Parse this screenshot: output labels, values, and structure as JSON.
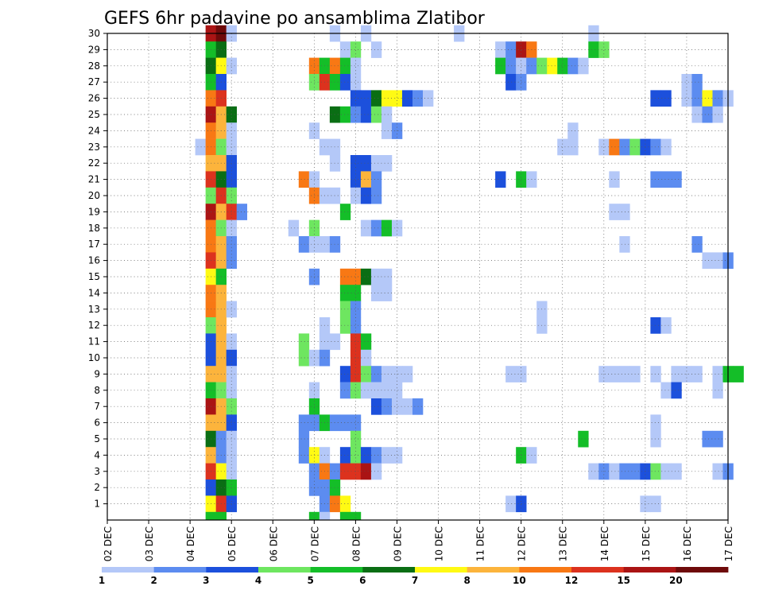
{
  "chart_data": {
    "type": "heatmap",
    "title": "GEFS 6hr padavine po ansamblima Zlatibor",
    "xlabel": "",
    "ylabel": "",
    "x_tick_labels": [
      "02 DEC",
      "03 DEC",
      "04 DEC",
      "05 DEC",
      "06 DEC",
      "07 DEC",
      "08 DEC",
      "09 DEC",
      "10 DEC",
      "11 DEC",
      "12 DEC",
      "13 DEC",
      "14 DEC",
      "15 DEC",
      "16 DEC",
      "17 DEC"
    ],
    "y_tick_labels": [
      "1",
      "2",
      "3",
      "4",
      "5",
      "6",
      "7",
      "8",
      "9",
      "10",
      "11",
      "12",
      "13",
      "14",
      "15",
      "16",
      "17",
      "18",
      "19",
      "20",
      "21",
      "22",
      "23",
      "24",
      "25",
      "26",
      "27",
      "28",
      "29",
      "30"
    ],
    "grid": true,
    "colorbar": {
      "labels": [
        "1",
        "2",
        "3",
        "4",
        "5",
        "6",
        "7",
        "8",
        "10",
        "12",
        "15",
        "20"
      ],
      "colors": [
        "#b4c8f8",
        "#5c8cf0",
        "#1c50dc",
        "#6ee660",
        "#14be28",
        "#0a6e14",
        "#fffa14",
        "#fcb43c",
        "#f87814",
        "#dc321e",
        "#aa1414",
        "#6e0a0a"
      ]
    },
    "cells": [
      [
        30,
        10,
        11
      ],
      [
        30,
        11,
        12
      ],
      [
        30,
        12,
        1
      ],
      [
        30,
        22,
        1
      ],
      [
        30,
        25,
        1
      ],
      [
        30,
        34,
        1
      ],
      [
        30,
        47,
        1
      ],
      [
        29,
        10,
        5
      ],
      [
        29,
        11,
        6
      ],
      [
        29,
        23,
        1
      ],
      [
        29,
        24,
        4
      ],
      [
        29,
        26,
        1
      ],
      [
        29,
        38,
        1
      ],
      [
        29,
        39,
        2
      ],
      [
        29,
        40,
        11
      ],
      [
        29,
        41,
        9
      ],
      [
        29,
        47,
        5
      ],
      [
        29,
        48,
        4
      ],
      [
        28,
        10,
        6
      ],
      [
        28,
        11,
        7
      ],
      [
        28,
        12,
        1
      ],
      [
        28,
        20,
        9
      ],
      [
        28,
        21,
        5
      ],
      [
        28,
        22,
        9
      ],
      [
        28,
        23,
        5
      ],
      [
        28,
        24,
        1
      ],
      [
        28,
        38,
        5
      ],
      [
        28,
        39,
        2
      ],
      [
        28,
        40,
        1
      ],
      [
        28,
        41,
        2
      ],
      [
        28,
        42,
        4
      ],
      [
        28,
        43,
        7
      ],
      [
        28,
        44,
        5
      ],
      [
        28,
        45,
        2
      ],
      [
        28,
        46,
        1
      ],
      [
        27,
        10,
        5
      ],
      [
        27,
        11,
        3
      ],
      [
        27,
        20,
        4
      ],
      [
        27,
        21,
        10
      ],
      [
        27,
        22,
        5
      ],
      [
        27,
        23,
        3
      ],
      [
        27,
        24,
        1
      ],
      [
        27,
        39,
        3
      ],
      [
        27,
        40,
        2
      ],
      [
        27,
        56,
        1
      ],
      [
        27,
        57,
        2
      ],
      [
        26,
        10,
        9
      ],
      [
        26,
        11,
        10
      ],
      [
        26,
        24,
        3
      ],
      [
        26,
        25,
        3
      ],
      [
        26,
        26,
        6
      ],
      [
        26,
        27,
        7
      ],
      [
        26,
        28,
        7
      ],
      [
        26,
        29,
        3
      ],
      [
        26,
        30,
        2
      ],
      [
        26,
        31,
        1
      ],
      [
        26,
        53,
        3
      ],
      [
        26,
        54,
        3
      ],
      [
        26,
        56,
        1
      ],
      [
        26,
        57,
        2
      ],
      [
        26,
        58,
        7
      ],
      [
        26,
        59,
        2
      ],
      [
        26,
        60,
        1
      ],
      [
        25,
        10,
        11
      ],
      [
        25,
        11,
        8
      ],
      [
        25,
        12,
        6
      ],
      [
        25,
        22,
        6
      ],
      [
        25,
        23,
        5
      ],
      [
        25,
        24,
        2
      ],
      [
        25,
        25,
        3
      ],
      [
        25,
        26,
        4
      ],
      [
        25,
        27,
        1
      ],
      [
        25,
        57,
        1
      ],
      [
        25,
        58,
        2
      ],
      [
        25,
        59,
        1
      ],
      [
        24,
        10,
        9
      ],
      [
        24,
        11,
        8
      ],
      [
        24,
        12,
        1
      ],
      [
        24,
        20,
        1
      ],
      [
        24,
        27,
        1
      ],
      [
        24,
        28,
        2
      ],
      [
        24,
        45,
        1
      ],
      [
        23,
        9,
        1
      ],
      [
        23,
        10,
        9
      ],
      [
        23,
        11,
        4
      ],
      [
        23,
        12,
        1
      ],
      [
        23,
        21,
        1
      ],
      [
        23,
        22,
        1
      ],
      [
        23,
        44,
        1
      ],
      [
        23,
        45,
        1
      ],
      [
        23,
        48,
        1
      ],
      [
        23,
        49,
        9
      ],
      [
        23,
        50,
        2
      ],
      [
        23,
        51,
        4
      ],
      [
        23,
        52,
        3
      ],
      [
        23,
        53,
        2
      ],
      [
        23,
        54,
        1
      ],
      [
        22,
        10,
        8
      ],
      [
        22,
        11,
        8
      ],
      [
        22,
        12,
        3
      ],
      [
        22,
        22,
        1
      ],
      [
        22,
        24,
        3
      ],
      [
        22,
        25,
        3
      ],
      [
        22,
        26,
        1
      ],
      [
        22,
        27,
        1
      ],
      [
        21,
        10,
        10
      ],
      [
        21,
        11,
        6
      ],
      [
        21,
        12,
        3
      ],
      [
        21,
        19,
        9
      ],
      [
        21,
        20,
        1
      ],
      [
        21,
        24,
        3
      ],
      [
        21,
        25,
        8
      ],
      [
        21,
        26,
        2
      ],
      [
        21,
        38,
        3
      ],
      [
        21,
        40,
        5
      ],
      [
        21,
        41,
        1
      ],
      [
        21,
        49,
        1
      ],
      [
        21,
        53,
        2
      ],
      [
        21,
        54,
        2
      ],
      [
        21,
        55,
        2
      ],
      [
        20,
        10,
        4
      ],
      [
        20,
        11,
        10
      ],
      [
        20,
        12,
        4
      ],
      [
        20,
        20,
        9
      ],
      [
        20,
        21,
        1
      ],
      [
        20,
        22,
        1
      ],
      [
        20,
        24,
        1
      ],
      [
        20,
        25,
        3
      ],
      [
        20,
        26,
        2
      ],
      [
        19,
        10,
        11
      ],
      [
        19,
        11,
        8
      ],
      [
        19,
        12,
        10
      ],
      [
        19,
        13,
        2
      ],
      [
        19,
        23,
        5
      ],
      [
        19,
        49,
        1
      ],
      [
        19,
        50,
        1
      ],
      [
        18,
        10,
        9
      ],
      [
        18,
        11,
        4
      ],
      [
        18,
        12,
        1
      ],
      [
        18,
        18,
        1
      ],
      [
        18,
        20,
        4
      ],
      [
        18,
        25,
        1
      ],
      [
        18,
        26,
        2
      ],
      [
        18,
        27,
        5
      ],
      [
        18,
        28,
        1
      ],
      [
        17,
        10,
        9
      ],
      [
        17,
        11,
        8
      ],
      [
        17,
        12,
        2
      ],
      [
        17,
        19,
        2
      ],
      [
        17,
        20,
        1
      ],
      [
        17,
        21,
        1
      ],
      [
        17,
        22,
        2
      ],
      [
        17,
        50,
        1
      ],
      [
        17,
        57,
        2
      ],
      [
        16,
        10,
        10
      ],
      [
        16,
        11,
        8
      ],
      [
        16,
        12,
        2
      ],
      [
        16,
        58,
        1
      ],
      [
        16,
        59,
        1
      ],
      [
        16,
        60,
        2
      ],
      [
        15,
        10,
        7
      ],
      [
        15,
        11,
        5
      ],
      [
        15,
        20,
        2
      ],
      [
        15,
        23,
        9
      ],
      [
        15,
        24,
        9
      ],
      [
        15,
        25,
        6
      ],
      [
        15,
        26,
        1
      ],
      [
        15,
        27,
        1
      ],
      [
        14,
        10,
        9
      ],
      [
        14,
        11,
        8
      ],
      [
        14,
        23,
        5
      ],
      [
        14,
        24,
        5
      ],
      [
        14,
        26,
        1
      ],
      [
        14,
        27,
        1
      ],
      [
        13,
        10,
        9
      ],
      [
        13,
        11,
        8
      ],
      [
        13,
        12,
        1
      ],
      [
        13,
        23,
        4
      ],
      [
        13,
        24,
        2
      ],
      [
        13,
        42,
        1
      ],
      [
        12,
        10,
        4
      ],
      [
        12,
        11,
        8
      ],
      [
        12,
        21,
        1
      ],
      [
        12,
        23,
        4
      ],
      [
        12,
        24,
        2
      ],
      [
        12,
        42,
        1
      ],
      [
        12,
        53,
        3
      ],
      [
        12,
        54,
        1
      ],
      [
        11,
        10,
        3
      ],
      [
        11,
        11,
        8
      ],
      [
        11,
        12,
        1
      ],
      [
        11,
        19,
        4
      ],
      [
        11,
        21,
        1
      ],
      [
        11,
        22,
        1
      ],
      [
        11,
        24,
        10
      ],
      [
        11,
        25,
        5
      ],
      [
        10,
        10,
        3
      ],
      [
        10,
        11,
        8
      ],
      [
        10,
        12,
        3
      ],
      [
        10,
        19,
        4
      ],
      [
        10,
        20,
        1
      ],
      [
        10,
        21,
        2
      ],
      [
        10,
        24,
        10
      ],
      [
        10,
        25,
        1
      ],
      [
        9,
        10,
        8
      ],
      [
        9,
        11,
        8
      ],
      [
        9,
        12,
        1
      ],
      [
        9,
        23,
        3
      ],
      [
        9,
        24,
        10
      ],
      [
        9,
        25,
        4
      ],
      [
        9,
        26,
        2
      ],
      [
        9,
        27,
        1
      ],
      [
        9,
        28,
        1
      ],
      [
        9,
        29,
        1
      ],
      [
        9,
        39,
        1
      ],
      [
        9,
        40,
        1
      ],
      [
        9,
        48,
        1
      ],
      [
        9,
        49,
        1
      ],
      [
        9,
        50,
        1
      ],
      [
        9,
        51,
        1
      ],
      [
        9,
        53,
        1
      ],
      [
        9,
        55,
        1
      ],
      [
        9,
        56,
        1
      ],
      [
        9,
        57,
        1
      ],
      [
        9,
        59,
        1
      ],
      [
        9,
        60,
        5
      ],
      [
        9,
        61,
        5
      ],
      [
        8,
        10,
        5
      ],
      [
        8,
        11,
        4
      ],
      [
        8,
        12,
        1
      ],
      [
        8,
        20,
        1
      ],
      [
        8,
        23,
        2
      ],
      [
        8,
        24,
        4
      ],
      [
        8,
        25,
        1
      ],
      [
        8,
        26,
        1
      ],
      [
        8,
        27,
        1
      ],
      [
        8,
        28,
        1
      ],
      [
        8,
        54,
        1
      ],
      [
        8,
        55,
        3
      ],
      [
        8,
        59,
        1
      ],
      [
        7,
        10,
        11
      ],
      [
        7,
        11,
        8
      ],
      [
        7,
        12,
        4
      ],
      [
        7,
        20,
        5
      ],
      [
        7,
        26,
        3
      ],
      [
        7,
        27,
        2
      ],
      [
        7,
        28,
        1
      ],
      [
        7,
        29,
        1
      ],
      [
        7,
        30,
        2
      ],
      [
        6,
        10,
        8
      ],
      [
        6,
        11,
        8
      ],
      [
        6,
        12,
        3
      ],
      [
        6,
        19,
        2
      ],
      [
        6,
        20,
        2
      ],
      [
        6,
        21,
        5
      ],
      [
        6,
        22,
        2
      ],
      [
        6,
        23,
        2
      ],
      [
        6,
        24,
        2
      ],
      [
        6,
        53,
        1
      ],
      [
        5,
        10,
        6
      ],
      [
        5,
        11,
        2
      ],
      [
        5,
        12,
        1
      ],
      [
        5,
        19,
        2
      ],
      [
        5,
        24,
        4
      ],
      [
        5,
        46,
        5
      ],
      [
        5,
        53,
        1
      ],
      [
        5,
        58,
        2
      ],
      [
        5,
        59,
        2
      ],
      [
        4,
        10,
        8
      ],
      [
        4,
        11,
        2
      ],
      [
        4,
        12,
        1
      ],
      [
        4,
        19,
        2
      ],
      [
        4,
        20,
        7
      ],
      [
        4,
        21,
        1
      ],
      [
        4,
        23,
        3
      ],
      [
        4,
        24,
        4
      ],
      [
        4,
        25,
        3
      ],
      [
        4,
        26,
        2
      ],
      [
        4,
        27,
        1
      ],
      [
        4,
        28,
        1
      ],
      [
        4,
        40,
        5
      ],
      [
        4,
        41,
        1
      ],
      [
        3,
        10,
        10
      ],
      [
        3,
        11,
        7
      ],
      [
        3,
        12,
        1
      ],
      [
        3,
        20,
        2
      ],
      [
        3,
        21,
        9
      ],
      [
        3,
        22,
        2
      ],
      [
        3,
        23,
        10
      ],
      [
        3,
        24,
        10
      ],
      [
        3,
        25,
        11
      ],
      [
        3,
        26,
        1
      ],
      [
        3,
        47,
        1
      ],
      [
        3,
        48,
        2
      ],
      [
        3,
        49,
        1
      ],
      [
        3,
        50,
        2
      ],
      [
        3,
        51,
        2
      ],
      [
        3,
        52,
        3
      ],
      [
        3,
        53,
        4
      ],
      [
        3,
        54,
        1
      ],
      [
        3,
        55,
        1
      ],
      [
        3,
        59,
        1
      ],
      [
        3,
        60,
        2
      ],
      [
        2,
        10,
        3
      ],
      [
        2,
        11,
        6
      ],
      [
        2,
        12,
        5
      ],
      [
        2,
        20,
        2
      ],
      [
        2,
        21,
        2
      ],
      [
        2,
        22,
        5
      ],
      [
        1,
        10,
        7
      ],
      [
        1,
        11,
        10
      ],
      [
        1,
        12,
        3
      ],
      [
        1,
        21,
        2
      ],
      [
        1,
        22,
        9
      ],
      [
        1,
        23,
        7
      ],
      [
        1,
        39,
        1
      ],
      [
        1,
        40,
        3
      ],
      [
        1,
        52,
        1
      ],
      [
        1,
        53,
        1
      ],
      [
        0,
        10,
        5
      ],
      [
        0,
        11,
        5
      ],
      [
        0,
        20,
        5
      ],
      [
        0,
        21,
        1
      ],
      [
        0,
        23,
        5
      ],
      [
        0,
        24,
        5
      ]
    ]
  }
}
